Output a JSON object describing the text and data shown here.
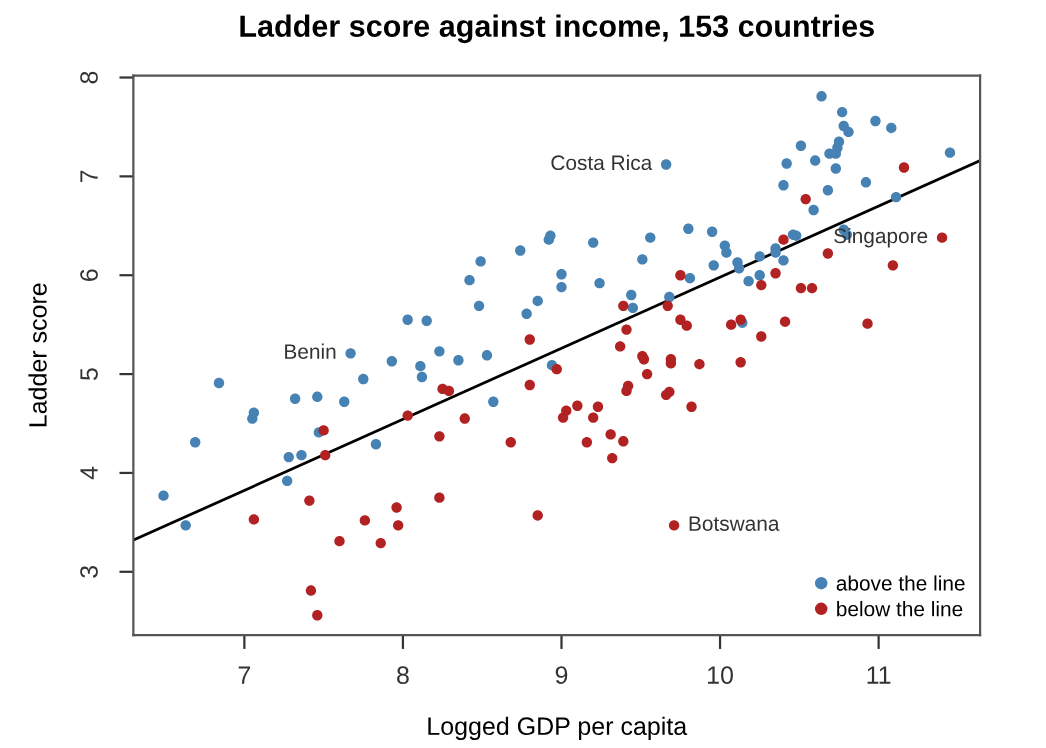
{
  "chart_data": {
    "type": "scatter",
    "title": "Ladder score against income, 153 countries",
    "xlabel": "Logged GDP per capita",
    "ylabel": "Ladder score",
    "xlim": [
      6.3,
      11.64
    ],
    "ylim": [
      2.36,
      8.02
    ],
    "xticks": [
      7,
      8,
      9,
      10,
      11
    ],
    "yticks": [
      3,
      4,
      5,
      6,
      7,
      8
    ],
    "grid": false,
    "legend": "bottom right",
    "series": [
      {
        "name": "above the line",
        "color": "#4682b4",
        "marker": "circle",
        "x": [
          6.49,
          6.63,
          6.69,
          6.84,
          7.05,
          7.06,
          7.27,
          7.28,
          7.32,
          7.36,
          7.46,
          7.47,
          7.63,
          7.67,
          7.75,
          7.83,
          7.93,
          8.03,
          8.11,
          8.15,
          8.12,
          8.23,
          8.35,
          8.42,
          8.48,
          8.49,
          8.53,
          8.57,
          8.74,
          8.78,
          8.85,
          8.92,
          8.93,
          8.94,
          9.0,
          9.0,
          9.2,
          9.24,
          9.44,
          9.45,
          9.51,
          9.56,
          9.66,
          9.68,
          9.8,
          9.81,
          9.95,
          9.96,
          10.03,
          10.04,
          10.11,
          10.12,
          10.14,
          10.18,
          10.25,
          10.25,
          10.35,
          10.35,
          10.4,
          10.4,
          10.42,
          10.46,
          10.48,
          10.51,
          10.59,
          10.6,
          10.64,
          10.68,
          10.69,
          10.73,
          10.73,
          10.74,
          10.75,
          10.77,
          10.78,
          10.78,
          10.8,
          10.81,
          10.92,
          10.98,
          11.08,
          11.11,
          11.45
        ],
        "values": [
          3.77,
          3.47,
          4.31,
          4.91,
          4.55,
          4.61,
          3.92,
          4.16,
          4.75,
          4.18,
          4.77,
          4.41,
          4.72,
          5.21,
          4.95,
          4.29,
          5.13,
          5.55,
          5.08,
          5.54,
          4.97,
          5.23,
          5.14,
          5.95,
          5.69,
          6.14,
          5.19,
          4.72,
          6.25,
          5.61,
          5.74,
          6.36,
          6.4,
          5.09,
          6.01,
          5.88,
          6.33,
          5.92,
          5.8,
          5.67,
          6.16,
          6.38,
          7.12,
          5.78,
          6.47,
          5.97,
          6.44,
          6.1,
          6.3,
          6.23,
          6.13,
          6.07,
          5.52,
          5.94,
          6.19,
          6.0,
          6.27,
          6.23,
          6.15,
          6.91,
          7.13,
          6.41,
          6.4,
          7.31,
          6.66,
          7.16,
          7.81,
          6.86,
          7.23,
          7.08,
          7.23,
          7.29,
          7.35,
          7.65,
          7.51,
          6.46,
          6.41,
          7.45,
          6.94,
          7.56,
          7.49,
          6.79,
          7.24
        ]
      },
      {
        "name": "below the line",
        "color": "#b22222",
        "marker": "circle",
        "x": [
          7.06,
          7.41,
          7.42,
          7.46,
          7.5,
          7.51,
          7.6,
          7.76,
          7.86,
          7.96,
          7.97,
          8.03,
          8.23,
          8.23,
          8.25,
          8.29,
          8.39,
          8.68,
          8.8,
          8.8,
          8.85,
          8.97,
          9.01,
          9.03,
          9.1,
          9.16,
          9.2,
          9.23,
          9.31,
          9.32,
          9.37,
          9.39,
          9.39,
          9.41,
          9.42,
          9.41,
          9.51,
          9.52,
          9.54,
          9.66,
          9.67,
          9.68,
          9.69,
          9.69,
          9.71,
          9.75,
          9.75,
          9.79,
          9.82,
          9.87,
          10.07,
          10.13,
          10.13,
          10.26,
          10.26,
          10.35,
          10.4,
          10.41,
          10.51,
          10.54,
          10.58,
          10.68,
          10.93,
          11.09,
          11.16,
          11.4
        ],
        "values": [
          3.53,
          3.72,
          2.81,
          2.56,
          4.43,
          4.18,
          3.31,
          3.52,
          3.29,
          3.65,
          3.47,
          4.58,
          4.37,
          3.75,
          4.85,
          4.83,
          4.55,
          4.31,
          5.35,
          4.89,
          3.57,
          5.05,
          4.56,
          4.63,
          4.68,
          4.31,
          4.56,
          4.67,
          4.39,
          4.15,
          5.28,
          4.32,
          5.69,
          4.83,
          4.88,
          5.45,
          5.18,
          5.15,
          5.0,
          4.79,
          5.69,
          4.82,
          5.15,
          5.11,
          3.47,
          6.0,
          5.55,
          5.49,
          4.67,
          5.1,
          5.5,
          5.55,
          5.12,
          5.9,
          5.38,
          6.02,
          6.36,
          5.53,
          5.87,
          6.77,
          5.87,
          6.22,
          5.51,
          6.1,
          7.09,
          6.38
        ]
      },
      {
        "type": "line",
        "color": "#000000",
        "line_style": "solid",
        "marker": "none",
        "x": [
          6.3,
          11.64
        ],
        "values": [
          3.32,
          7.16
        ]
      }
    ],
    "annotations": [
      {
        "text": "Costa Rica",
        "x": 9.66,
        "y": 7.12
      },
      {
        "text": "Benin",
        "x": 7.67,
        "y": 5.21
      },
      {
        "text": "Singapore",
        "x": 11.4,
        "y": 6.38
      },
      {
        "text": "Botswana",
        "x": 9.71,
        "y": 3.47
      }
    ]
  }
}
